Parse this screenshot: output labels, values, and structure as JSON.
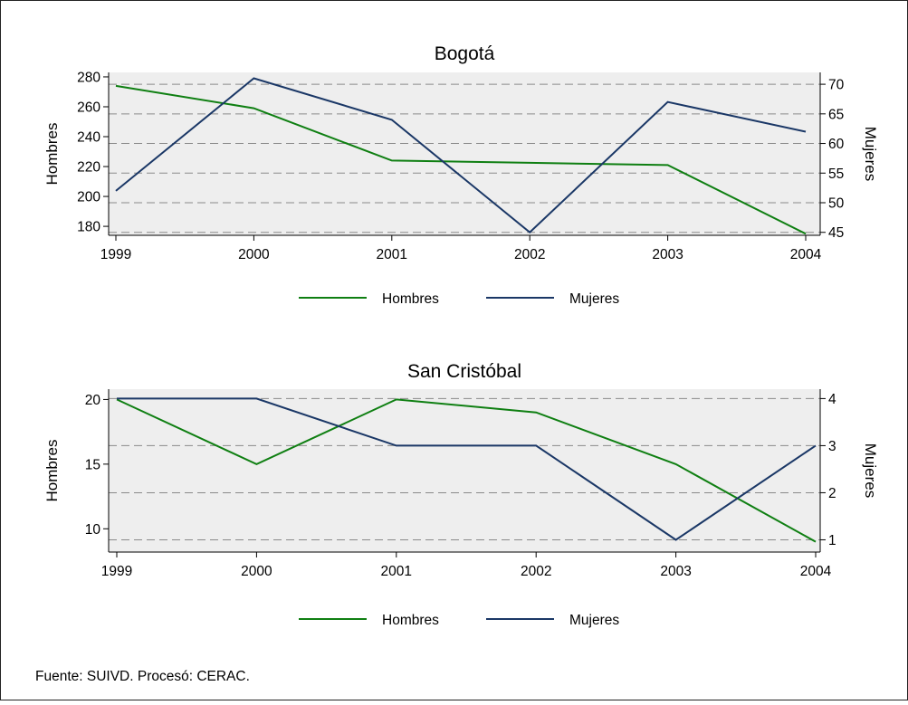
{
  "source_note": "Fuente: SUIVD. Procesó: CERAC.",
  "colors": {
    "hombres": "#0f7f12",
    "mujeres": "#1a3766",
    "plot_bg": "#eeeeee",
    "grid": "#8a8a8a"
  },
  "chart_data": [
    {
      "type": "line",
      "title": "Bogotá",
      "categories": [
        "1999",
        "2000",
        "2001",
        "2002",
        "2003",
        "2004"
      ],
      "ylabel_left": "Hombres",
      "ylabel_right": "Mujeres",
      "yticks_left": [
        280,
        260,
        240,
        220,
        200,
        180
      ],
      "yticks_right": [
        70,
        65,
        60,
        55,
        50,
        45
      ],
      "ylim_left": [
        174,
        283
      ],
      "ylim_right": [
        44.5,
        72
      ],
      "grid": true,
      "legend_position": "bottom",
      "series": [
        {
          "name": "Hombres",
          "axis": "left",
          "values": [
            274,
            259,
            224,
            222.5,
            221,
            175
          ]
        },
        {
          "name": "Mujeres",
          "axis": "right",
          "values": [
            52,
            71,
            64,
            45,
            67,
            62
          ]
        }
      ]
    },
    {
      "type": "line",
      "title": "San Cristóbal",
      "categories": [
        "1999",
        "2000",
        "2001",
        "2002",
        "2003",
        "2004"
      ],
      "ylabel_left": "Hombres",
      "ylabel_right": "Mujeres",
      "yticks_left": [
        20,
        15,
        10
      ],
      "yticks_right": [
        4,
        3,
        2,
        1
      ],
      "ylim_left": [
        8.2,
        20.8
      ],
      "ylim_right": [
        0.74,
        4.2
      ],
      "grid": true,
      "legend_position": "bottom",
      "series": [
        {
          "name": "Hombres",
          "axis": "left",
          "values": [
            20,
            15,
            20,
            19,
            15,
            9
          ]
        },
        {
          "name": "Mujeres",
          "axis": "right",
          "values": [
            4,
            4,
            3,
            3,
            1,
            3
          ]
        }
      ]
    }
  ]
}
